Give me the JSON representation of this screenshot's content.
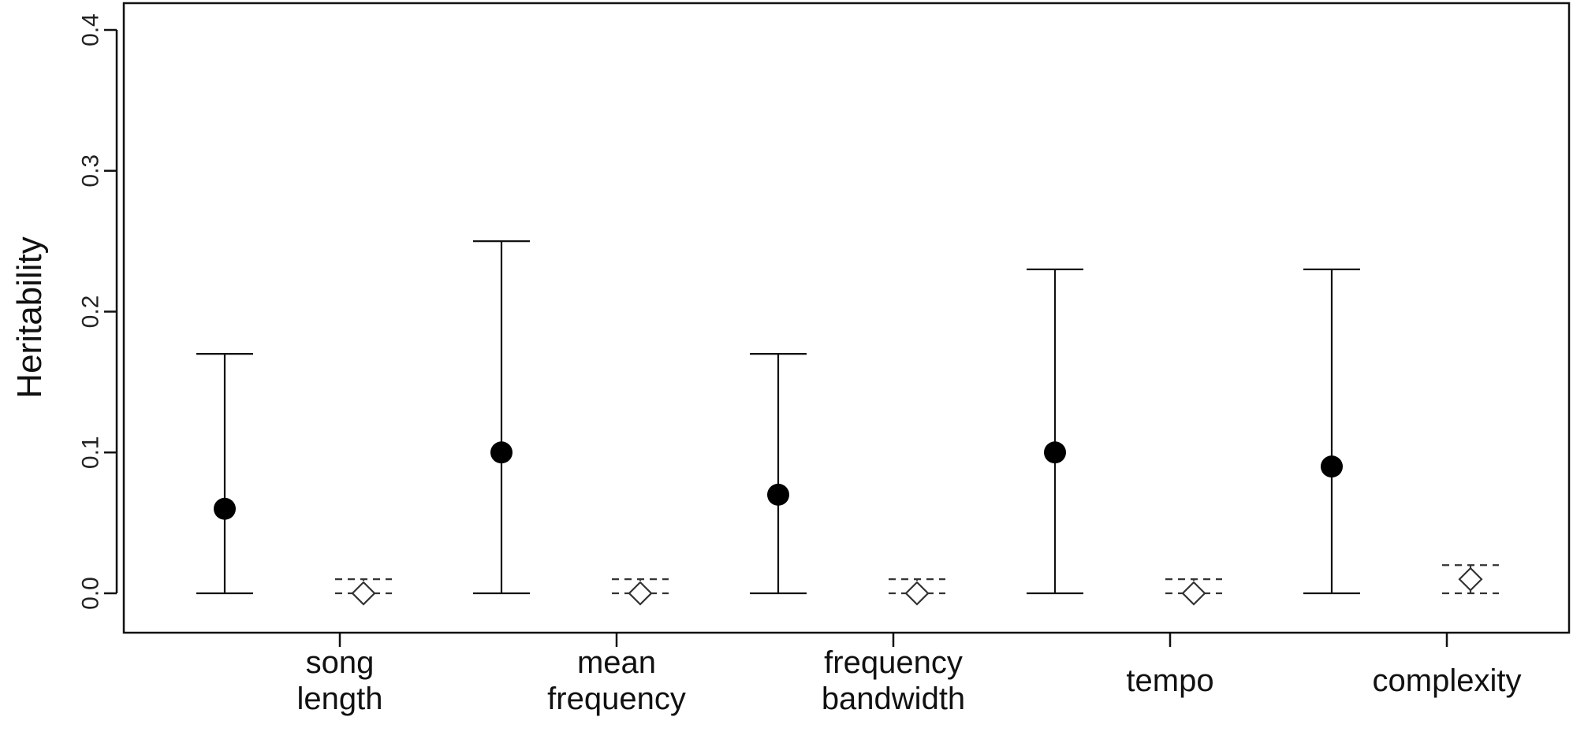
{
  "chart_data": {
    "type": "scatter",
    "ylabel": "Heritability",
    "ylim": [
      0,
      0.4
    ],
    "yticks": [
      "0.0",
      "0.1",
      "0.2",
      "0.3",
      "0.4"
    ],
    "grid": false,
    "categories": [
      [
        "song",
        "length"
      ],
      [
        "mean",
        "frequency"
      ],
      [
        "frequency",
        "bandwidth"
      ],
      [
        "tempo"
      ],
      [
        "complexity"
      ]
    ],
    "series": [
      {
        "marker": "filled-circle",
        "color": "#000000",
        "values": [
          0.06,
          0.1,
          0.07,
          0.1,
          0.09
        ],
        "lower": [
          0.0,
          0.0,
          0.0,
          0.0,
          0.0
        ],
        "upper": [
          0.17,
          0.25,
          0.17,
          0.23,
          0.23
        ]
      },
      {
        "marker": "open-diamond",
        "color": "#333333",
        "values": [
          0.0,
          0.0,
          0.0,
          0.0,
          0.01
        ],
        "lower": [
          0.0,
          0.0,
          0.0,
          0.0,
          0.0
        ],
        "upper": [
          0.01,
          0.01,
          0.01,
          0.01,
          0.02
        ]
      }
    ]
  }
}
